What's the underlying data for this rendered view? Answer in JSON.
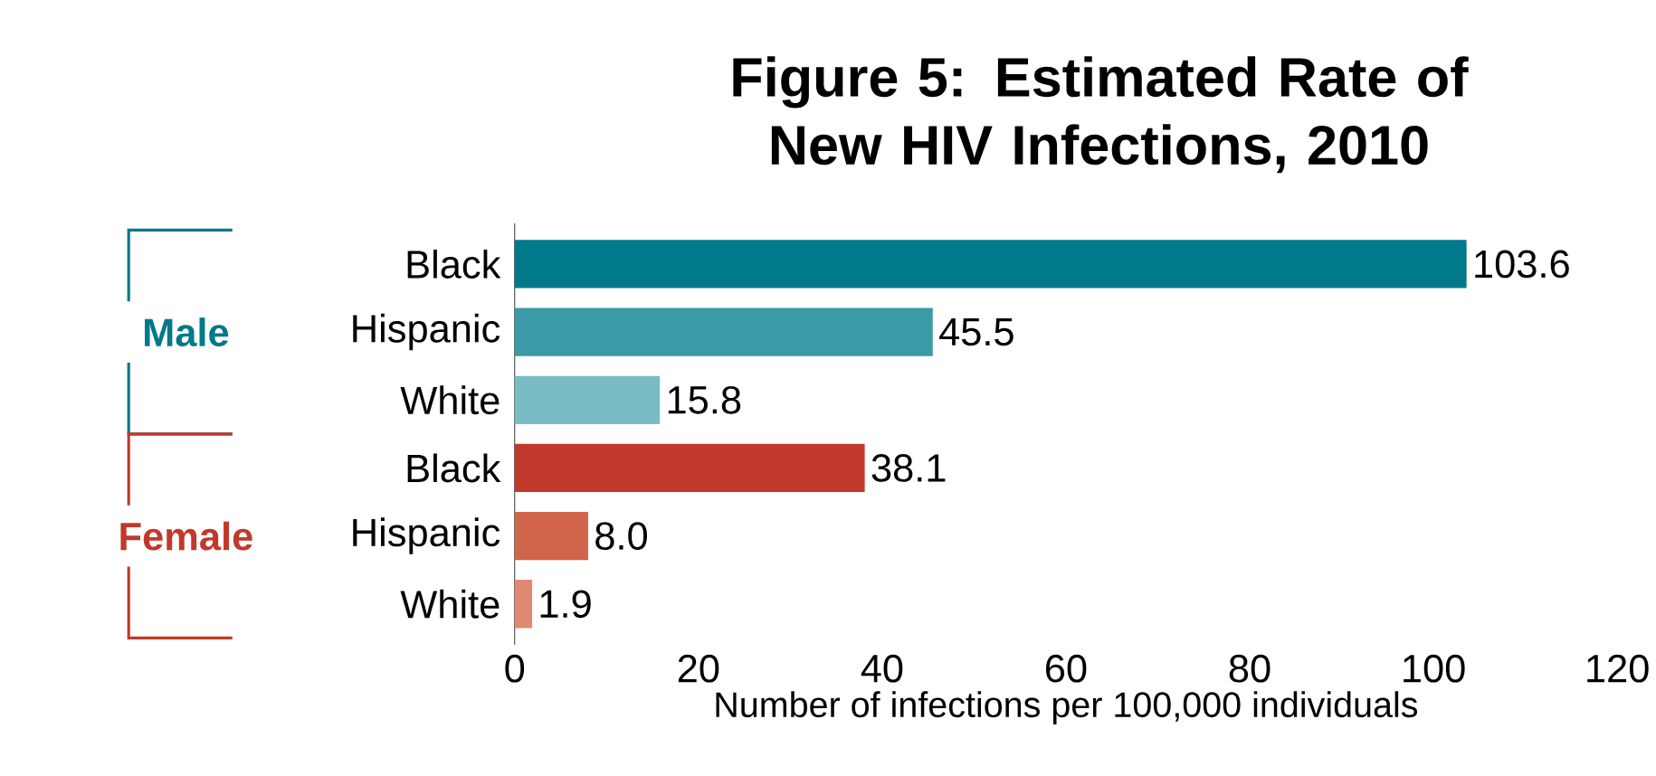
{
  "chart_data": {
    "type": "bar",
    "orientation": "horizontal",
    "title": "Figure 5: Estimated Rate of New HIV Infections, 2010",
    "xlabel": "Number of infections per 100,000 individuals",
    "categories": [
      "Black",
      "Hispanic",
      "White",
      "Black",
      "Hispanic",
      "White"
    ],
    "values": [
      103.6,
      45.5,
      15.8,
      38.1,
      8.0,
      1.9
    ],
    "colors": [
      "#00798a",
      "#3a9aa8",
      "#79bcc4",
      "#c0392b",
      "#d0654b",
      "#df8a70"
    ],
    "xlim": [
      0,
      120
    ],
    "xticks": [
      0,
      20,
      40,
      60,
      80,
      100,
      120
    ],
    "value_labels": [
      "103.6",
      "45.5",
      "15.8",
      "38.1",
      "8.0",
      "1.9"
    ],
    "grid": false,
    "annotations": [
      "Male",
      "Female"
    ]
  }
}
